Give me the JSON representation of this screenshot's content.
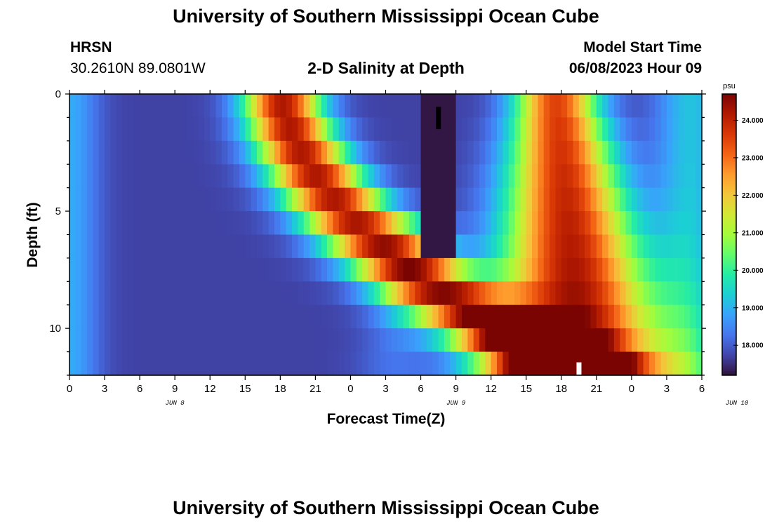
{
  "header": {
    "title": "University of Southern Mississippi Ocean Cube",
    "station": "HRSN",
    "coords": "30.2610N  89.0801W",
    "subtitle": "2-D Salinity at Depth",
    "model_label": "Model Start Time",
    "model_time": "06/08/2023 Hour 09"
  },
  "footer": {
    "title": "University of Southern Mississippi Ocean Cube"
  },
  "colors": {
    "scale": [
      "#30123b",
      "#4145ab",
      "#4675ed",
      "#39a2fc",
      "#1bcfd4",
      "#24eca6",
      "#61fc6c",
      "#a4fc3b",
      "#d1e834",
      "#f3c63a",
      "#fe9b2d",
      "#f36315",
      "#d93806",
      "#b11901",
      "#7a0402"
    ]
  },
  "chart_data": {
    "type": "heatmap",
    "title": "2-D Salinity at Depth",
    "xlabel": "Forecast Time(Z)",
    "ylabel": "Depth (ft)",
    "x_tick_labels": [
      "0",
      "3",
      "6",
      "9",
      "12",
      "15",
      "18",
      "21",
      "0",
      "3",
      "6",
      "9",
      "12",
      "15",
      "18",
      "21",
      "0",
      "3",
      "6"
    ],
    "x_range_hours": [
      0,
      54
    ],
    "date_labels": [
      "JUN 8",
      "JUN 9",
      "JUN 10"
    ],
    "y_tick_labels": [
      "0",
      "5",
      "10"
    ],
    "ylim": [
      0,
      12
    ],
    "y_inverted": true,
    "colorbar": {
      "unit": "psu",
      "min": 17.2,
      "max": 24.7,
      "ticks": [
        "18.000",
        "19.000",
        "20.000",
        "21.000",
        "22.000",
        "23.000",
        "24.000"
      ]
    }
  }
}
